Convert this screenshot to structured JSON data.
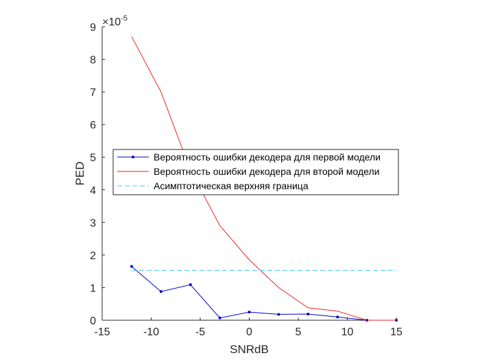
{
  "chart_data": {
    "type": "line",
    "xlabel": "SNRdB",
    "ylabel": "PED",
    "y_exponent_label": "×10",
    "y_exponent_power": "-5",
    "xlim": [
      -15,
      15
    ],
    "ylim": [
      0,
      9
    ],
    "xticks": [
      "-15",
      "-10",
      "-5",
      "0",
      "5",
      "10",
      "15"
    ],
    "yticks": [
      "0",
      "1",
      "2",
      "3",
      "4",
      "5",
      "6",
      "7",
      "8",
      "9"
    ],
    "grid": false,
    "legend_position": "center",
    "x": [
      -12,
      -9,
      -6,
      -3,
      0,
      3,
      6,
      9,
      12,
      15
    ],
    "series": [
      {
        "name": "Вероятность ошибки декодера для первой модели",
        "color": "#0000cc",
        "style": "solid",
        "marker": "dot",
        "values": [
          1.65,
          0.88,
          1.09,
          0.07,
          0.25,
          0.18,
          0.19,
          0.1,
          0.0,
          0.0
        ]
      },
      {
        "name": "Вероятность ошибки декодера для второй модели",
        "color": "#ee2222",
        "style": "solid",
        "marker": "none",
        "values": [
          8.7,
          7.0,
          4.6,
          2.9,
          1.85,
          1.0,
          0.38,
          0.28,
          0.0,
          0.0
        ]
      },
      {
        "name": "Асимптотическая верхняя граница",
        "color": "#33ccee",
        "style": "dashed",
        "marker": "none",
        "values": [
          1.53,
          1.53,
          1.53,
          1.53,
          1.53,
          1.53,
          1.53,
          1.53,
          1.53,
          1.53
        ]
      }
    ]
  }
}
